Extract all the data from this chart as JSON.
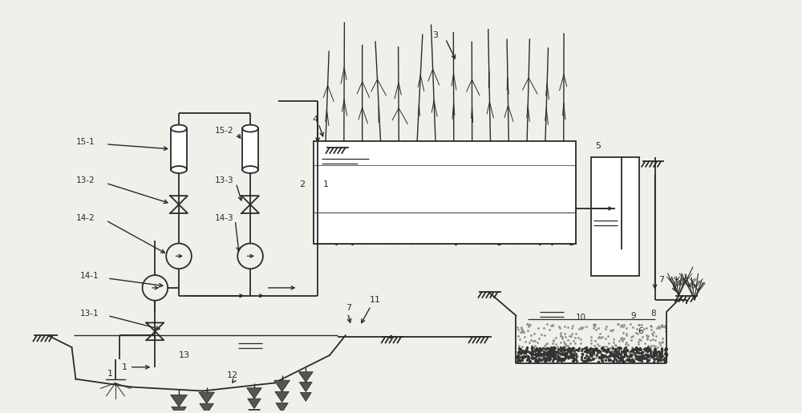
{
  "bg_color": "#f0f0eb",
  "line_color": "#2a2a2a",
  "fig_width": 10.0,
  "fig_height": 5.15,
  "dpi": 100
}
